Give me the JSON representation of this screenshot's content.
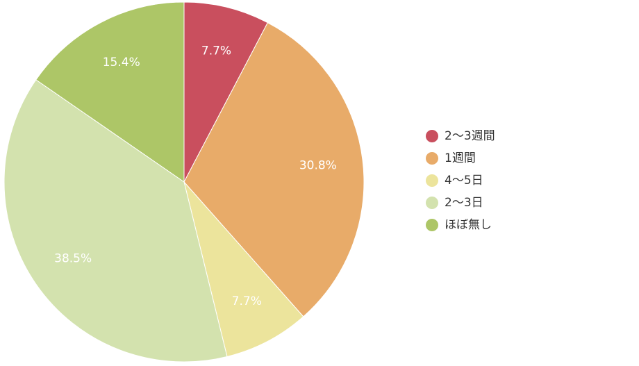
{
  "chart_data": {
    "type": "pie",
    "categories": [
      "2〜3週間",
      "1週間",
      "4〜5日",
      "2〜3日",
      "ほぼ無し"
    ],
    "values": [
      7.7,
      30.8,
      7.7,
      38.5,
      15.4
    ],
    "labels": [
      "7.7%",
      "30.8%",
      "7.7%",
      "38.5%",
      "15.4%"
    ],
    "colors": [
      "#c94f5e",
      "#e8ab69",
      "#ece49c",
      "#d3e2ae",
      "#adc667"
    ],
    "legend_position": "right",
    "start_angle_deg": 0,
    "direction": "clockwise"
  }
}
